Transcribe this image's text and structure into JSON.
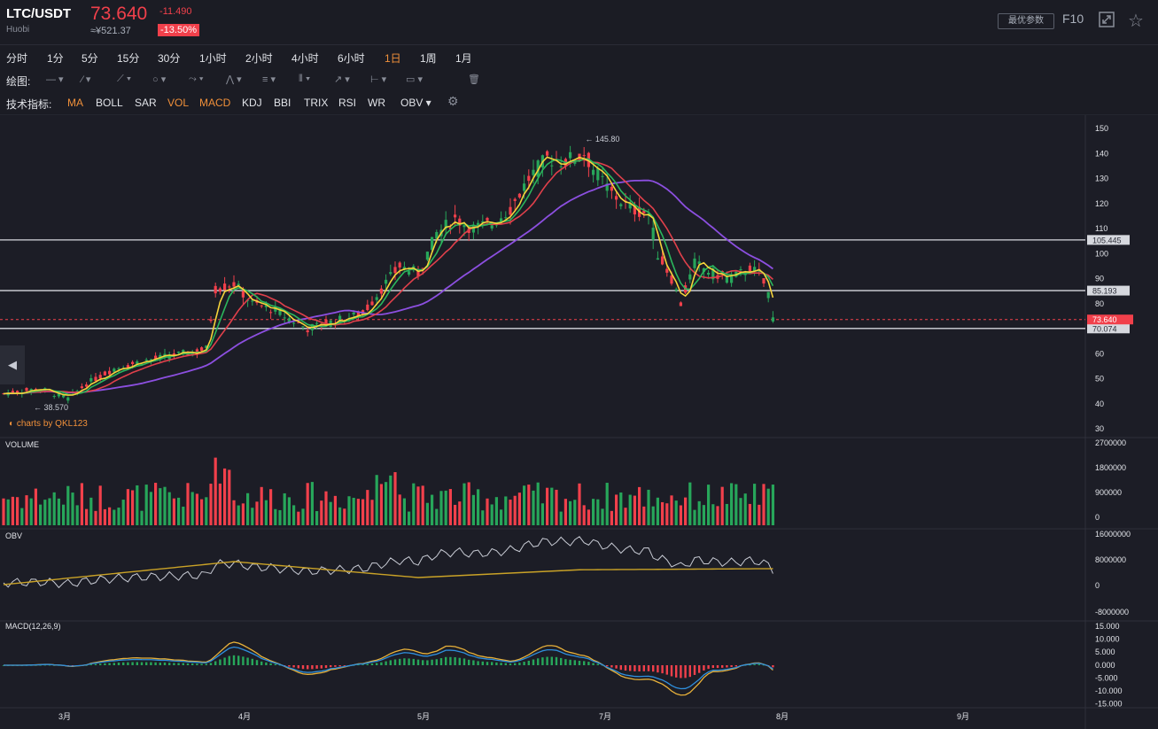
{
  "header": {
    "pair": "LTC/USDT",
    "exchange": "Huobi",
    "price": "73.640",
    "change": "-11.490",
    "cny": "≈¥521.37",
    "change_pct": "-13.50%",
    "best_params_btn": "最优参数",
    "f10_btn": "F10",
    "fullscreen_icon": "fullscreen-icon",
    "star_icon": "star-icon"
  },
  "periods": [
    "分时",
    "1分",
    "5分",
    "15分",
    "30分",
    "1小时",
    "2小时",
    "4小时",
    "6小时",
    "1日",
    "1周",
    "1月"
  ],
  "active_period": "1日",
  "draw_label": "绘图:",
  "draw_tools": [
    "line-tool-icon",
    "pen-tool-icon",
    "fib-tool-icon",
    "shape-tool-icon",
    "path-tool-icon",
    "pattern-tool-icon",
    "level-tool-icon",
    "channel-tool-icon",
    "arrow-tool-icon",
    "measure-tool-icon",
    "comment-tool-icon",
    "trash-icon"
  ],
  "indicators_label": "技术指标:",
  "indicators": [
    "MA",
    "BOLL",
    "SAR",
    "VOL",
    "MACD",
    "KDJ",
    "BBI",
    "TRIX",
    "RSI",
    "WR",
    "OBV"
  ],
  "indicators_on": [
    "MA",
    "VOL",
    "MACD"
  ],
  "settings_icon": "gear-icon",
  "main_chart": {
    "high_label": "145.80",
    "low_label": "38.570",
    "hlines": [
      {
        "label": "105.445",
        "value": 105.445
      },
      {
        "label": "85.193",
        "value": 85.193
      },
      {
        "label": "70.074",
        "value": 70.074
      }
    ],
    "last_price_tag": "73.640",
    "y_ticks": [
      "150",
      "140",
      "130",
      "120",
      "110",
      "100",
      "90",
      "80",
      "70",
      "60",
      "50",
      "40",
      "30"
    ],
    "y_tick_values": [
      150,
      140,
      130,
      120,
      110,
      100,
      90,
      80,
      70,
      60,
      50,
      40,
      30
    ],
    "x_ticks": [
      "3月",
      "4月",
      "5月",
      "7月",
      "8月",
      "9月"
    ],
    "brand": "charts by QKL123"
  },
  "volume_panel": {
    "title": "VOLUME",
    "y_ticks": [
      "2700000",
      "1800000",
      "900000",
      "0"
    ]
  },
  "obv_panel": {
    "title": "OBV",
    "y_ticks": [
      "16000000",
      "8000000",
      "0",
      "-8000000"
    ]
  },
  "macd_panel": {
    "title": "MACD(12,26,9)",
    "y_ticks": [
      "15.000",
      "10.000",
      "5.000",
      "0.000",
      "-5.000",
      "-10.000",
      "-15.000"
    ]
  },
  "colors": {
    "up": "#27a65a",
    "down": "#f1404b",
    "ma1": "#f5d33a",
    "ma2": "#2bb65c",
    "ma3": "#e0404b",
    "ma4": "#8c4fe0",
    "obv": "#c8cbd4",
    "obv_ma": "#c9a227",
    "macd_dif": "#e8b13a",
    "macd_dea": "#2f8fdd"
  }
}
